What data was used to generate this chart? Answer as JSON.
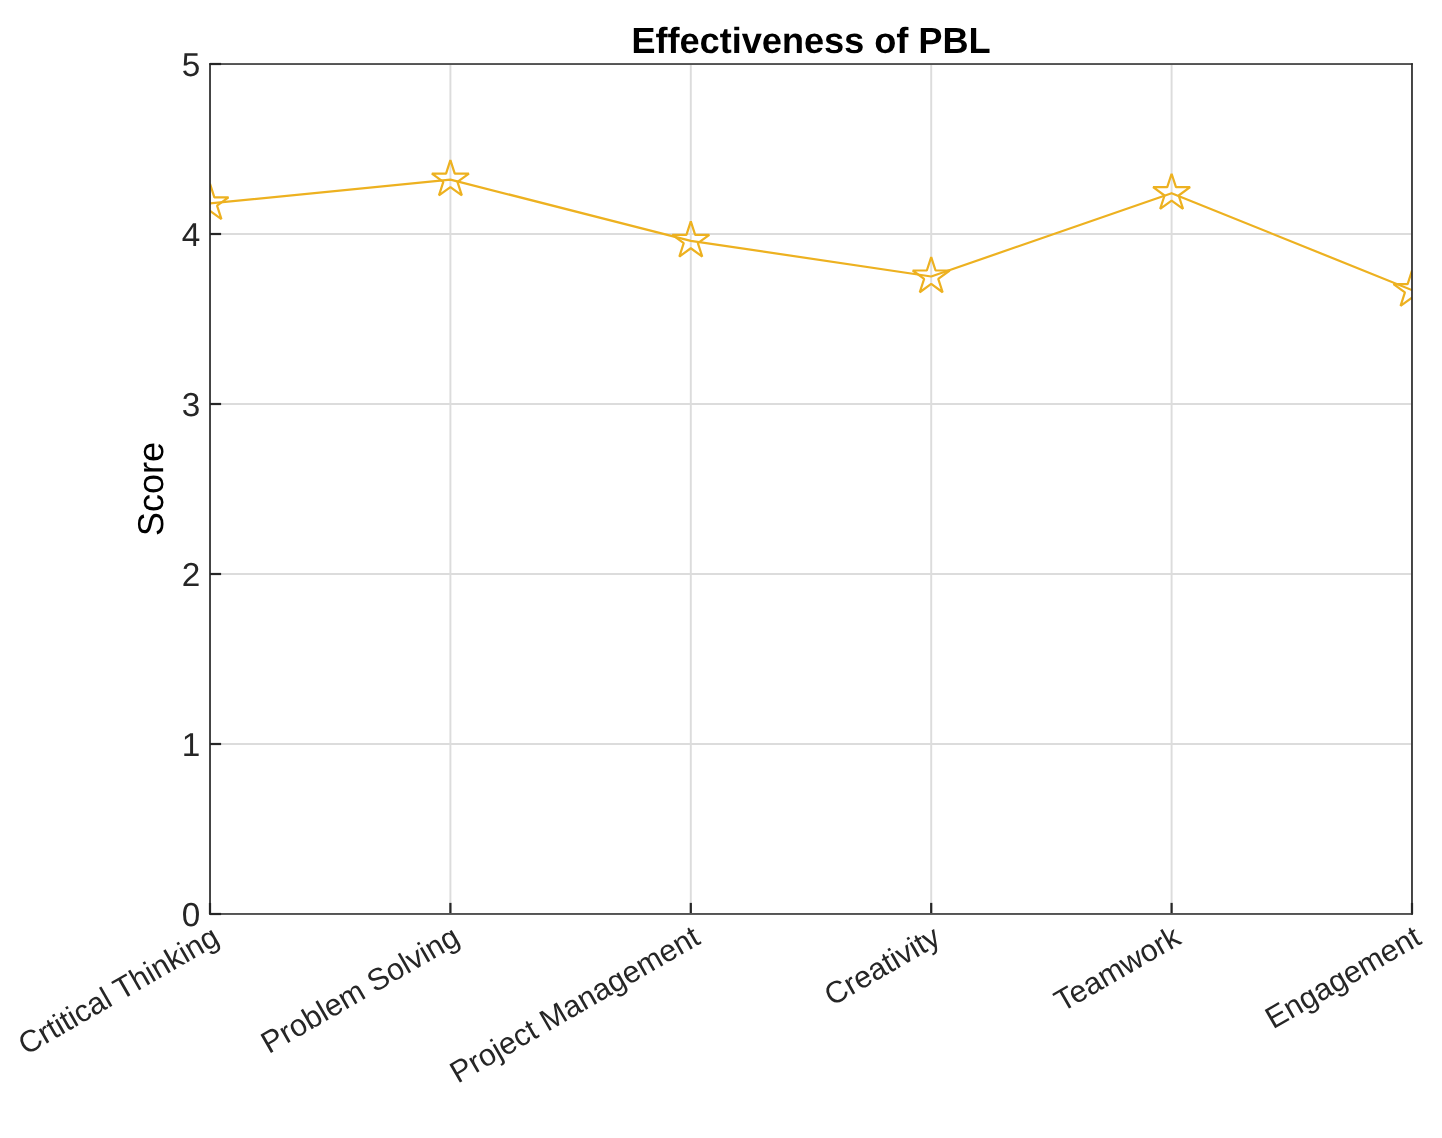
{
  "chart_data": {
    "type": "line",
    "title": "Effectiveness of PBL",
    "ylabel": "Score",
    "categories": [
      "Crtitical Thinking",
      "Problem Solving",
      "Project Management",
      "Creativity",
      "Teamwork",
      "Engagement"
    ],
    "series": [
      {
        "color": "#edb120",
        "values": [
          4.18,
          4.32,
          3.96,
          3.75,
          4.24,
          3.67
        ]
      }
    ],
    "ylim": [
      0,
      5
    ],
    "yticks": [
      0,
      1,
      2,
      3,
      4,
      5
    ],
    "grid": true,
    "marker": "star",
    "line_style": "solid"
  }
}
